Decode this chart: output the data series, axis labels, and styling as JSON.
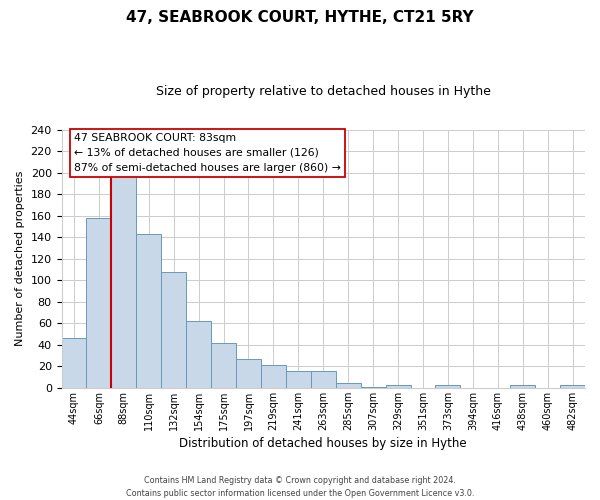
{
  "title": "47, SEABROOK COURT, HYTHE, CT21 5RY",
  "subtitle": "Size of property relative to detached houses in Hythe",
  "xlabel": "Distribution of detached houses by size in Hythe",
  "ylabel": "Number of detached properties",
  "bar_labels": [
    "44sqm",
    "66sqm",
    "88sqm",
    "110sqm",
    "132sqm",
    "154sqm",
    "175sqm",
    "197sqm",
    "219sqm",
    "241sqm",
    "263sqm",
    "285sqm",
    "307sqm",
    "329sqm",
    "351sqm",
    "373sqm",
    "394sqm",
    "416sqm",
    "438sqm",
    "460sqm",
    "482sqm"
  ],
  "bar_heights": [
    46,
    158,
    201,
    143,
    108,
    62,
    42,
    27,
    21,
    16,
    16,
    5,
    1,
    3,
    0,
    3,
    0,
    0,
    3,
    0,
    3
  ],
  "bar_color": "#c8d8e8",
  "bar_edge_color": "#6699bb",
  "highlight_line_color": "#cc0000",
  "annotation_line1": "47 SEABROOK COURT: 83sqm",
  "annotation_line2": "← 13% of detached houses are smaller (126)",
  "annotation_line3": "87% of semi-detached houses are larger (860) →",
  "annotation_box_color": "#ffffff",
  "annotation_box_edge_color": "#cc0000",
  "ylim": [
    0,
    240
  ],
  "yticks": [
    0,
    20,
    40,
    60,
    80,
    100,
    120,
    140,
    160,
    180,
    200,
    220,
    240
  ],
  "footer_line1": "Contains HM Land Registry data © Crown copyright and database right 2024.",
  "footer_line2": "Contains public sector information licensed under the Open Government Licence v3.0.",
  "background_color": "#ffffff",
  "grid_color": "#cccccc",
  "red_line_x": 1.5
}
